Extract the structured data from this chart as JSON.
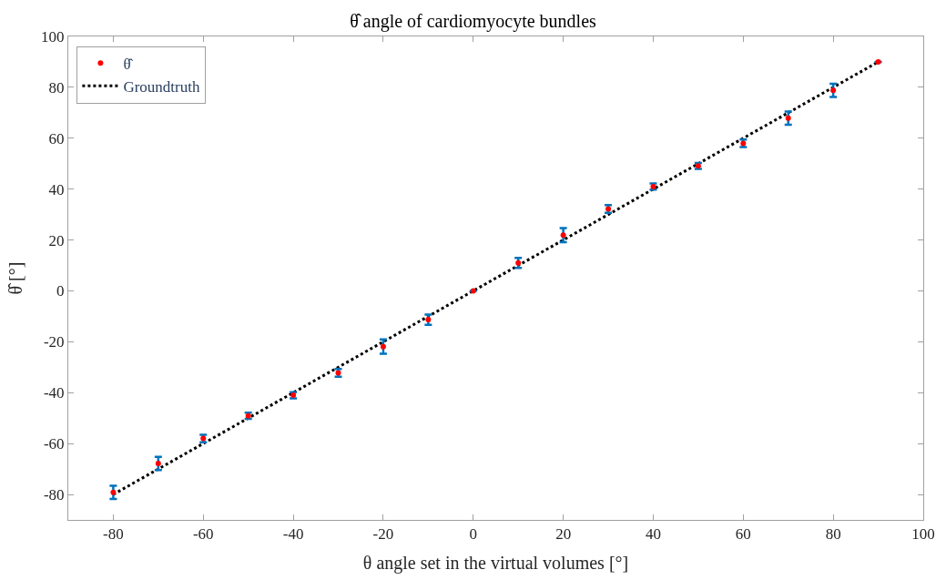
{
  "chart_data": {
    "type": "scatter",
    "title": "θ̂ angle of cardiomyocyte bundles",
    "xlabel": "θ angle set in the virtual volumes [°]",
    "ylabel": "θ̂ [°]",
    "xlim": [
      -90,
      100
    ],
    "xticks": [
      -80,
      -60,
      -40,
      -20,
      0,
      20,
      40,
      60,
      80,
      100
    ],
    "ylim": [
      -90,
      100
    ],
    "yticks": [
      -80,
      -60,
      -40,
      -20,
      0,
      20,
      40,
      60,
      80,
      100
    ],
    "grid": false,
    "legend": "top left",
    "series": [
      {
        "name": "θ̂",
        "marker": "circle",
        "color": "#ff0000",
        "x": [
          -80,
          -70,
          -60,
          -50,
          -40,
          -30,
          -20,
          -10,
          0,
          10,
          20,
          30,
          40,
          50,
          60,
          70,
          80,
          90
        ],
        "values": [
          -79.2,
          -67.8,
          -58,
          -49.1,
          -41,
          -32.2,
          -21.9,
          -11.3,
          0,
          11,
          21.9,
          32.2,
          41,
          49.1,
          58,
          67.9,
          78.8,
          90
        ],
        "errors": [
          2.6,
          2.6,
          1.5,
          1.2,
          1.2,
          1.5,
          2.8,
          2,
          0,
          2,
          2.8,
          1.5,
          1.2,
          1.2,
          1.5,
          2.6,
          2.6,
          0
        ]
      },
      {
        "name": "Groundtruth",
        "type": "line",
        "marker": "none",
        "line_style": "dotted",
        "color": "#000000",
        "x": [
          -80,
          90
        ],
        "values": [
          -80,
          90
        ]
      }
    ]
  }
}
